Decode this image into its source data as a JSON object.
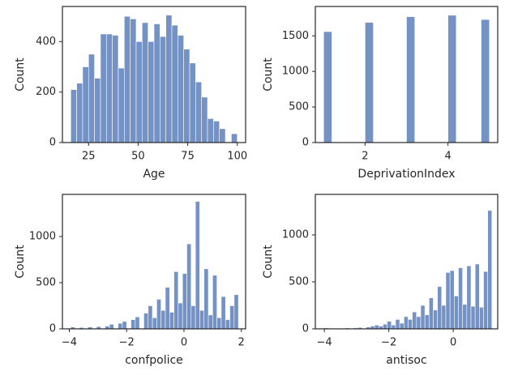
{
  "chart_data": [
    {
      "type": "histogram",
      "xlabel": "Age",
      "ylabel": "Count",
      "color": "#7492c4",
      "bins": [
        16,
        19,
        22,
        25,
        28,
        31,
        34,
        37,
        40,
        43,
        46,
        49,
        52,
        55,
        58,
        61,
        64,
        67,
        70,
        73,
        76,
        79,
        82,
        85,
        88,
        91,
        94,
        97,
        100
      ],
      "values": [
        210,
        235,
        300,
        350,
        255,
        430,
        430,
        425,
        295,
        500,
        490,
        400,
        475,
        400,
        470,
        420,
        505,
        465,
        425,
        370,
        315,
        240,
        180,
        95,
        85,
        55,
        0,
        35
      ],
      "xlim": [
        11.8,
        104.2
      ],
      "ylim": [
        0,
        539
      ],
      "xticks": [
        25,
        50,
        75,
        100
      ],
      "yticks": [
        0,
        200,
        400
      ]
    },
    {
      "type": "histogram",
      "xlabel": "DeprivationIndex",
      "ylabel": "Count",
      "color": "#7492c4",
      "bins": [
        1,
        1.2,
        1.4,
        1.6,
        1.8,
        2,
        2.2,
        2.4,
        2.6,
        2.8,
        3,
        3.2,
        3.4,
        3.6,
        3.8,
        4,
        4.2,
        4.4,
        4.6,
        4.8,
        5
      ],
      "values": [
        1560,
        0,
        0,
        0,
        0,
        1690,
        0,
        0,
        0,
        0,
        1770,
        0,
        0,
        0,
        0,
        1790,
        0,
        0,
        0,
        1730
      ],
      "xlim": [
        0.8,
        5.2
      ],
      "ylim": [
        0,
        1913
      ],
      "xticks": [
        2,
        4
      ],
      "yticks": [
        0,
        500,
        1000,
        1500
      ]
    },
    {
      "type": "histogram",
      "xlabel": "confpolice",
      "ylabel": "Count",
      "color": "#7492c4",
      "bins": [
        -3.95,
        -3.8,
        -3.65,
        -3.5,
        -3.35,
        -3.2,
        -3.05,
        -2.9,
        -2.75,
        -2.6,
        -2.45,
        -2.3,
        -2.15,
        -2,
        -1.85,
        -1.7,
        -1.55,
        -1.4,
        -1.25,
        -1.1,
        -0.95,
        -0.8,
        -0.65,
        -0.5,
        -0.35,
        -0.2,
        -0.05,
        0.1,
        0.25,
        0.4,
        0.55,
        0.7,
        0.85,
        1,
        1.15,
        1.3,
        1.45,
        1.6,
        1.75,
        1.9
      ],
      "values": [
        20,
        0,
        15,
        0,
        20,
        0,
        25,
        0,
        30,
        50,
        0,
        60,
        80,
        0,
        100,
        130,
        0,
        170,
        250,
        120,
        320,
        200,
        450,
        180,
        620,
        280,
        600,
        920,
        250,
        1380,
        200,
        650,
        150,
        580,
        120,
        350,
        100,
        250,
        370
      ],
      "xlim": [
        -4.24,
        2.15
      ],
      "ylim": [
        0,
        1456
      ],
      "xticks": [
        {
          "value": -4,
          "label": "−4"
        },
        {
          "value": -2,
          "label": "−2"
        },
        0,
        2
      ],
      "yticks": [
        0,
        500,
        1000
      ]
    },
    {
      "type": "histogram",
      "xlabel": "antisoc",
      "ylabel": "Count",
      "color": "#7492c4",
      "bins": [
        -4,
        -3.87,
        -3.74,
        -3.61,
        -3.48,
        -3.35,
        -3.22,
        -3.09,
        -2.96,
        -2.83,
        -2.7,
        -2.57,
        -2.44,
        -2.31,
        -2.18,
        -2.05,
        -1.92,
        -1.79,
        -1.66,
        -1.53,
        -1.4,
        -1.27,
        -1.14,
        -1.01,
        -0.88,
        -0.75,
        -0.62,
        -0.49,
        -0.36,
        -0.23,
        -0.1,
        0.03,
        0.16,
        0.29,
        0.42,
        0.55,
        0.68,
        0.81,
        0.94,
        1.07,
        1.2
      ],
      "values": [
        10,
        0,
        0,
        5,
        0,
        10,
        0,
        10,
        15,
        0,
        20,
        30,
        40,
        30,
        50,
        80,
        40,
        100,
        60,
        130,
        100,
        180,
        130,
        250,
        150,
        330,
        200,
        450,
        250,
        600,
        620,
        350,
        650,
        260,
        670,
        240,
        690,
        230,
        610,
        1260
      ],
      "xlim": [
        -4.28,
        1.38
      ],
      "ylim": [
        0,
        1431
      ],
      "xticks": [
        {
          "value": -4,
          "label": "−4"
        },
        {
          "value": -2,
          "label": "−2"
        },
        0
      ],
      "yticks": [
        0,
        500,
        1000
      ]
    }
  ]
}
